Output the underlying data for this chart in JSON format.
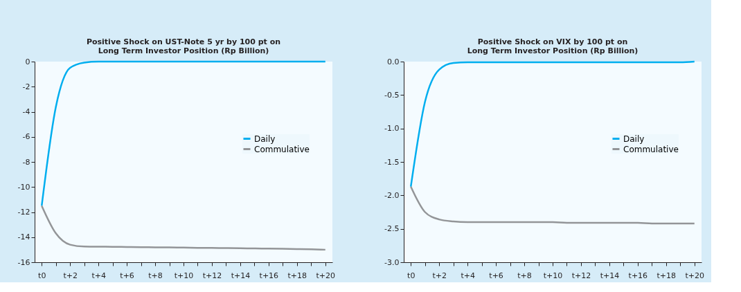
{
  "chart_data": [
    {
      "type": "line",
      "title": [
        "Positive Shock on UST-Note 5 yr by 100 pt on",
        "Long Term Investor Position (Rp Billion)"
      ],
      "categories": [
        "t0",
        null,
        "t+2",
        null,
        "t+4",
        null,
        "t+6",
        null,
        "t+8",
        null,
        "t+10",
        null,
        "t+12",
        null,
        "t+14",
        null,
        "t+16",
        null,
        "t+18",
        null,
        "t+20"
      ],
      "series": [
        {
          "name": "Daily",
          "color": "#00aeef",
          "values": [
            -11.5,
            -3.6,
            -0.5,
            -0.08,
            0,
            0,
            0,
            0,
            0,
            0,
            0,
            0,
            0,
            0,
            0,
            0,
            0,
            0,
            0,
            0,
            0
          ]
        },
        {
          "name": "Commulative",
          "color": "#939598",
          "values": [
            -11.5,
            -13.7,
            -14.6,
            -14.75,
            -14.76,
            -14.77,
            -14.78,
            -14.8,
            -14.81,
            -14.82,
            -14.83,
            -14.85,
            -14.86,
            -14.87,
            -14.88,
            -14.9,
            -14.91,
            -14.93,
            -14.95,
            -14.97,
            -15.0
          ]
        }
      ],
      "ylim": [
        -16,
        0
      ],
      "yticks": [
        -16,
        -14,
        -12,
        -10,
        -8,
        -6,
        -4,
        -2,
        0
      ],
      "grid": false,
      "legend": "right",
      "marker": "none",
      "line_style": "solid"
    },
    {
      "type": "line",
      "title": [
        "Positive Shock on VIX by 100 pt on",
        "Long Term Investor Position (Rp Billion)"
      ],
      "categories": [
        "t0",
        null,
        "t+2",
        null,
        "t+4",
        null,
        "t+6",
        null,
        "t+8",
        null,
        "t+10",
        null,
        "t+12",
        null,
        "t+14",
        null,
        "t+16",
        null,
        "t+18",
        null,
        "t+20"
      ],
      "series": [
        {
          "name": "Daily",
          "color": "#00aeef",
          "values": [
            -1.87,
            -0.6,
            -0.12,
            -0.02,
            -0.01,
            -0.01,
            -0.01,
            -0.01,
            -0.01,
            -0.01,
            -0.01,
            -0.01,
            -0.01,
            -0.01,
            -0.01,
            -0.01,
            -0.01,
            -0.01,
            -0.01,
            -0.01,
            0
          ]
        },
        {
          "name": "Commulative",
          "color": "#939598",
          "values": [
            -1.87,
            -2.25,
            -2.36,
            -2.39,
            -2.4,
            -2.4,
            -2.4,
            -2.4,
            -2.4,
            -2.4,
            -2.4,
            -2.41,
            -2.41,
            -2.41,
            -2.41,
            -2.41,
            -2.41,
            -2.42,
            -2.42,
            -2.42,
            -2.42
          ]
        }
      ],
      "ylim": [
        -3,
        0
      ],
      "yticks": [
        {
          "value": -3,
          "label": "-3.0"
        },
        {
          "value": -2.5,
          "label": "-2.5"
        },
        {
          "value": -2,
          "label": "-2.0"
        },
        {
          "value": -1.5,
          "label": "-1.5"
        },
        {
          "value": -1,
          "label": "-1.0"
        },
        {
          "value": -0.5,
          "label": "-0.5"
        },
        {
          "value": 0,
          "label": "0.0"
        }
      ],
      "grid": false,
      "legend": "right",
      "marker": "none",
      "line_style": "solid"
    }
  ]
}
